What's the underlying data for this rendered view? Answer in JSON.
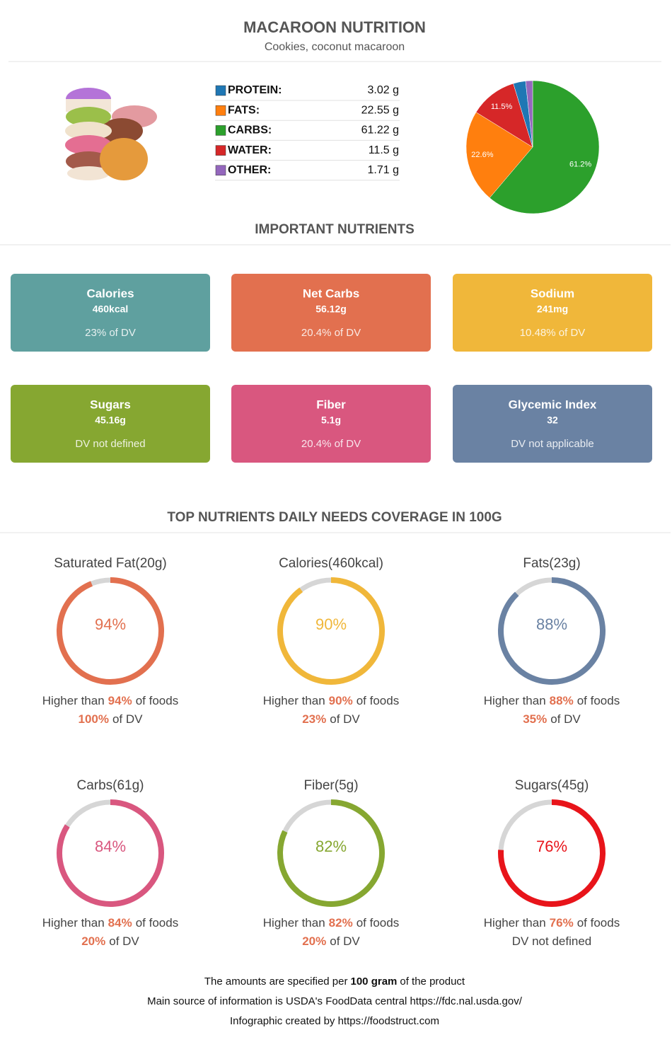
{
  "header": {
    "title": "MACAROON NUTRITION",
    "subtitle": "Cookies, coconut macaroon"
  },
  "macros": [
    {
      "name": "PROTEIN:",
      "amount": "3.02 g",
      "color": "#1f77b4"
    },
    {
      "name": "FATS:",
      "amount": "22.55 g",
      "color": "#ff7f0e"
    },
    {
      "name": "CARBS:",
      "amount": "61.22 g",
      "color": "#2ca02c"
    },
    {
      "name": "WATER:",
      "amount": "11.5 g",
      "color": "#d62728"
    },
    {
      "name": "OTHER:",
      "amount": "1.71 g",
      "color": "#9467bd"
    }
  ],
  "chart_data": {
    "type": "pie",
    "values": [
      61.2,
      22.6,
      11.5,
      3.0,
      1.7
    ],
    "value_labels": [
      "61.2%",
      "22.6%",
      "11.5%",
      null,
      null
    ],
    "colors": [
      "#2ca02c",
      "#ff7f0e",
      "#d62728",
      "#1f77b4",
      "#9467bd"
    ]
  },
  "sections": {
    "nutrients": "IMPORTANT NUTRIENTS",
    "coverage": "TOP NUTRIENTS DAILY NEEDS COVERAGE IN 100G"
  },
  "nutrients": [
    {
      "name": "Calories",
      "amount": "460kcal",
      "dv": "23% of DV",
      "color": "#5fa09f"
    },
    {
      "name": "Net Carbs",
      "amount": "56.12g",
      "dv": "20.4% of DV",
      "color": "#e2704f"
    },
    {
      "name": "Sodium",
      "amount": "241mg",
      "dv": "10.48% of DV",
      "color": "#f0b73a"
    },
    {
      "name": "Sugars",
      "amount": "45.16g",
      "dv": "DV not defined",
      "color": "#86a731"
    },
    {
      "name": "Fiber",
      "amount": "5.1g",
      "dv": "20.4% of DV",
      "color": "#d9577f"
    },
    {
      "name": "Glycemic Index",
      "amount": "32",
      "dv": "DV not applicable",
      "color": "#6a82a3"
    }
  ],
  "coverage": [
    {
      "title": "Saturated Fat(20g)",
      "value": 94,
      "value_label": "94%",
      "rank": [
        "Higher than",
        "94%",
        "of foods"
      ],
      "dv": [
        "100%",
        "of DV"
      ],
      "color": "#e2704f"
    },
    {
      "title": "Calories(460kcal)",
      "value": 90,
      "value_label": "90%",
      "rank": [
        "Higher than",
        "90%",
        "of foods"
      ],
      "dv": [
        "23%",
        "of DV"
      ],
      "color": "#f0b73a"
    },
    {
      "title": "Fats(23g)",
      "value": 88,
      "value_label": "88%",
      "rank": [
        "Higher than",
        "88%",
        "of foods"
      ],
      "dv": [
        "35%",
        "of DV"
      ],
      "color": "#6a82a3"
    },
    {
      "title": "Carbs(61g)",
      "value": 84,
      "value_label": "84%",
      "rank": [
        "Higher than",
        "84%",
        "of foods"
      ],
      "dv": [
        "20%",
        "of DV"
      ],
      "color": "#d9577f"
    },
    {
      "title": "Fiber(5g)",
      "value": 82,
      "value_label": "82%",
      "rank": [
        "Higher than",
        "82%",
        "of foods"
      ],
      "dv": [
        "20%",
        "of DV"
      ],
      "color": "#86a731"
    },
    {
      "title": "Sugars(45g)",
      "value": 76,
      "value_label": "76%",
      "rank": [
        "Higher than",
        "76%",
        "of foods"
      ],
      "dv": [
        "DV not defined"
      ],
      "color": "#e8141a"
    }
  ],
  "footer": {
    "lines": [
      [
        "The amounts are specified per",
        "100 gram",
        "of the product"
      ],
      [
        "Main source of information is USDA's FoodData central https://fdc.nal.usda.gov/"
      ],
      [
        "Infographic created by https://foodstruct.com"
      ]
    ]
  }
}
